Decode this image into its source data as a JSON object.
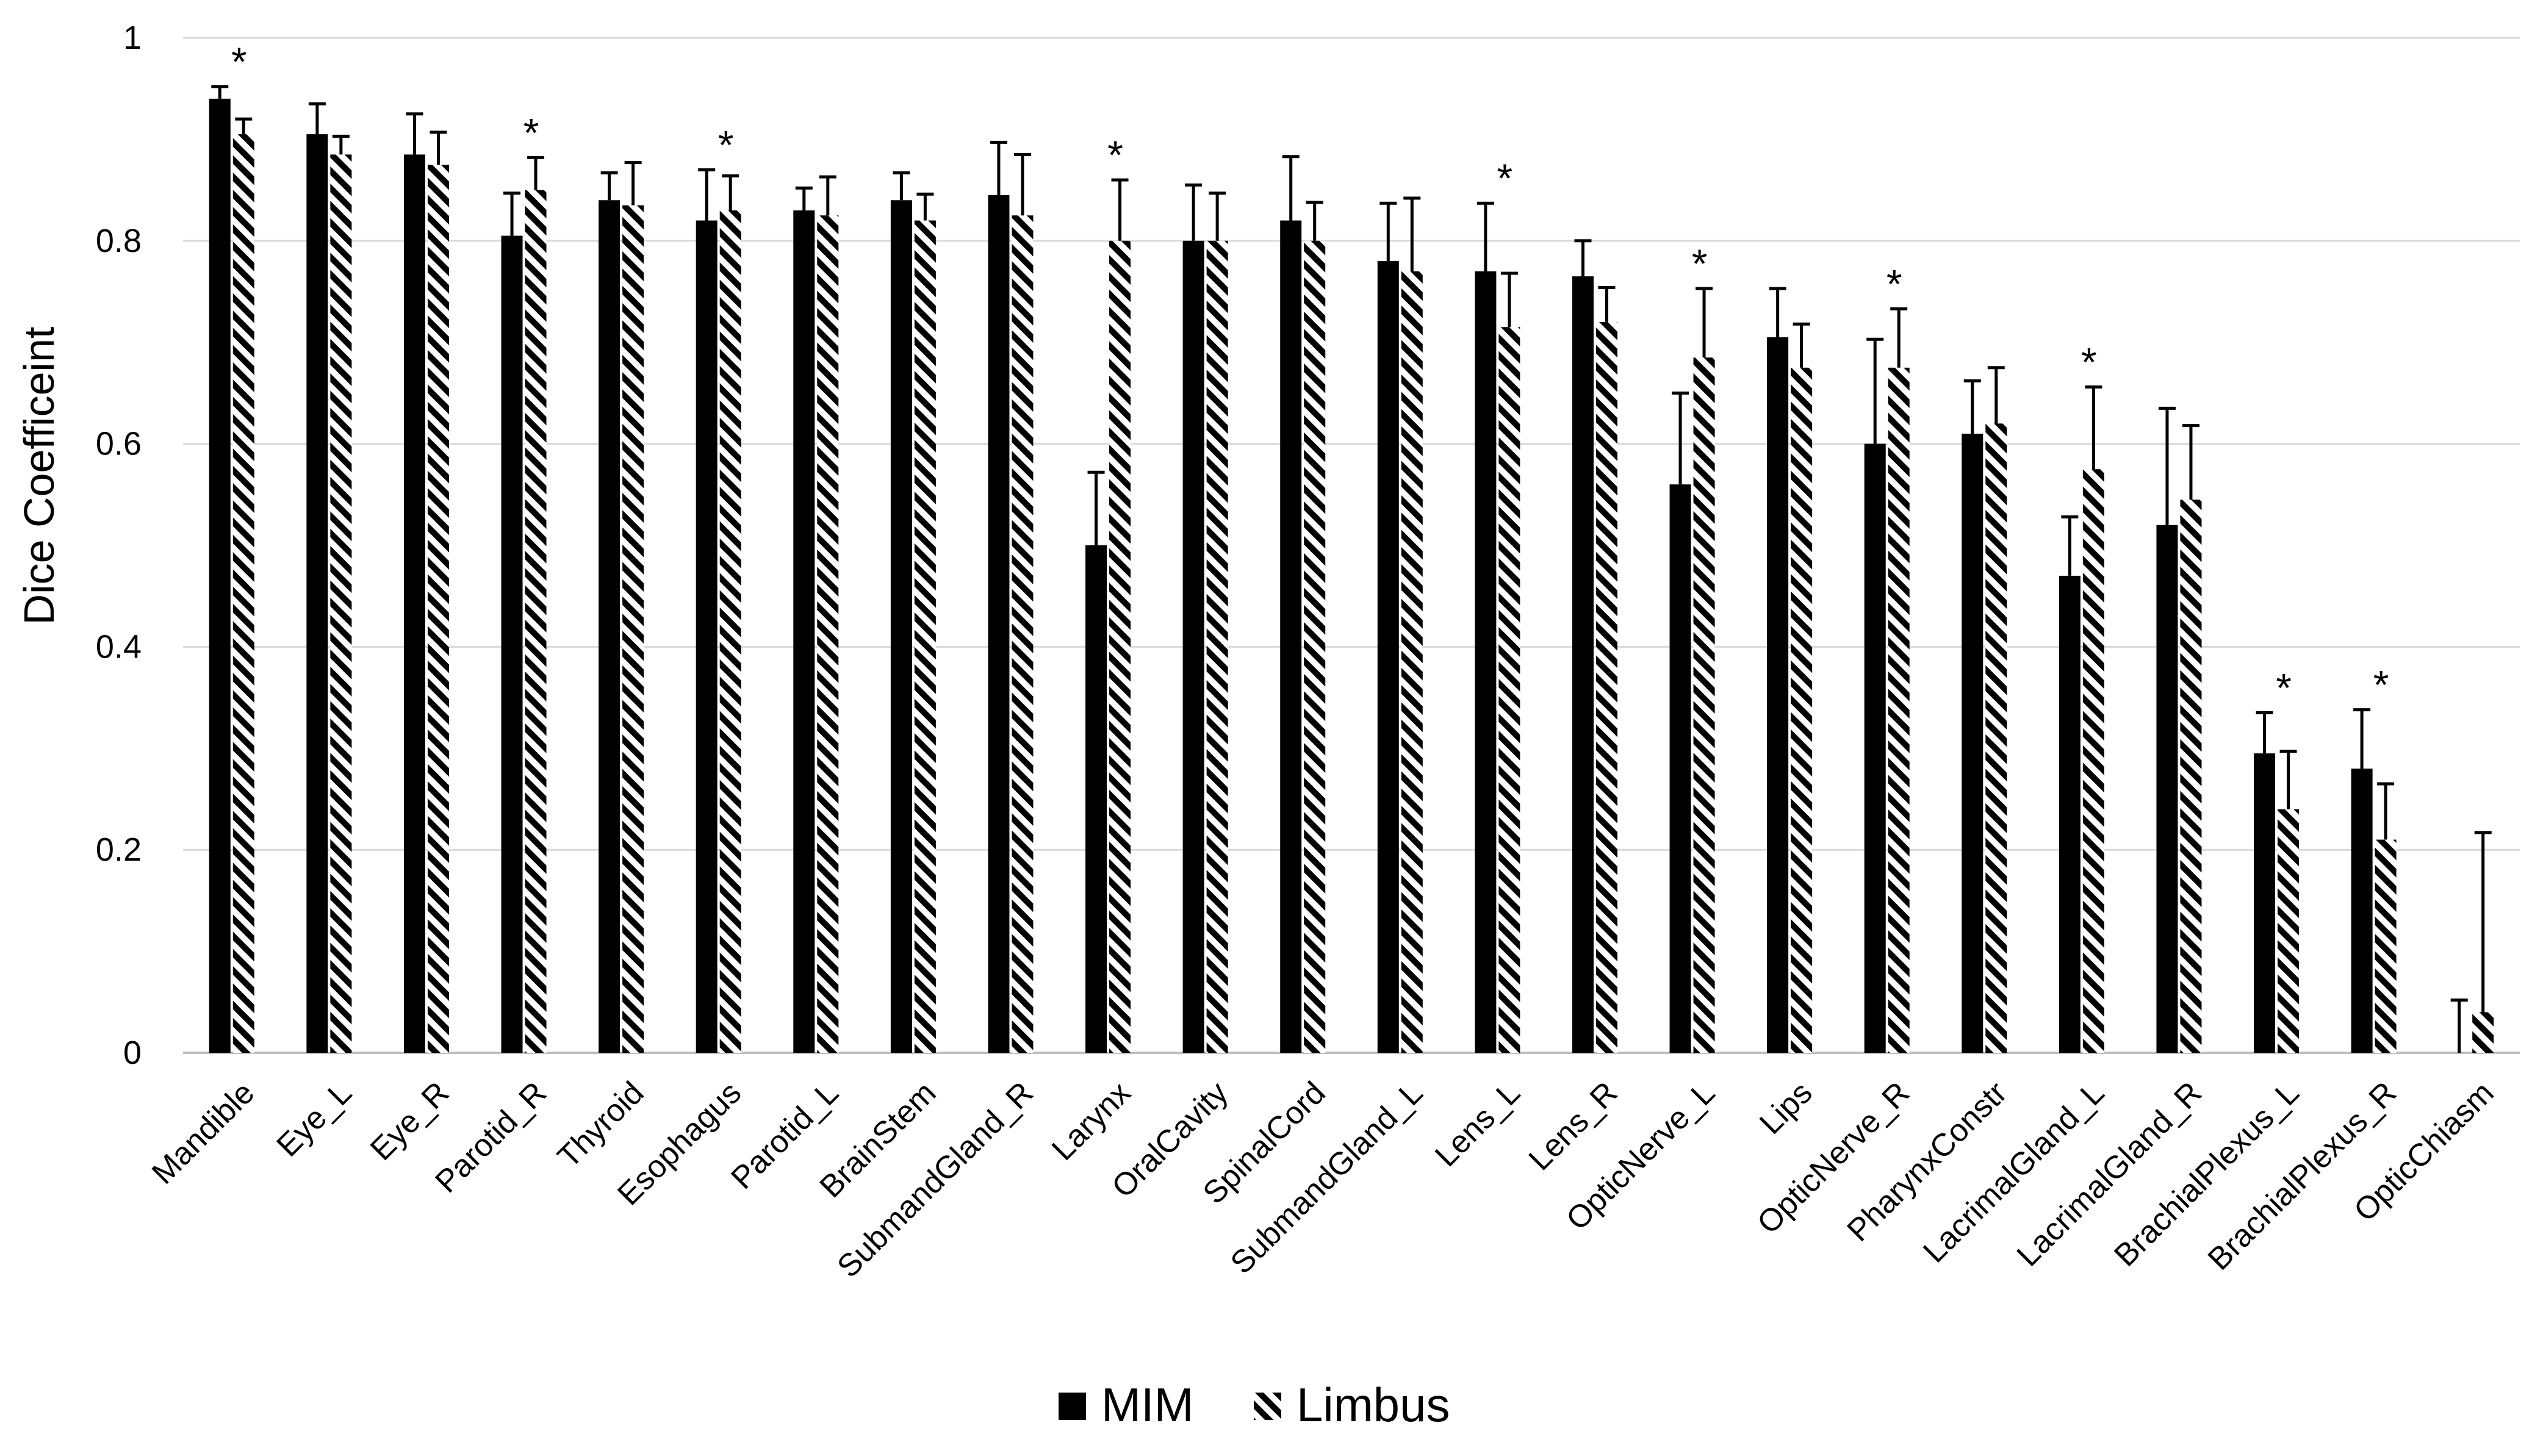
{
  "chart_data": {
    "type": "bar",
    "title": "",
    "xlabel": "",
    "ylabel": "Dice Coefficeint",
    "ylim": [
      0,
      1
    ],
    "yticks": [
      "0",
      "0.2",
      "0.4",
      "0.6",
      "0.8",
      "1"
    ],
    "grid": true,
    "legend_position": "bottom-center",
    "categories": [
      "Mandible",
      "Eye_L",
      "Eye_R",
      "Parotid_R",
      "Thyroid",
      "Esophagus",
      "Parotid_L",
      "BrainStem",
      "SubmandGland_R",
      "Larynx",
      "OralCavity",
      "SpinalCord",
      "SubmandGland_L",
      "Lens_L",
      "Lens_R",
      "OpticNerve_L",
      "Lips",
      "OpticNerve_R",
      "PharynxConstr",
      "LacrimalGland_L",
      "LacrimalGland_R",
      "BrachialPlexus_L",
      "BrachialPlexus_R",
      "OpticChiasm"
    ],
    "series": [
      {
        "name": "MIM",
        "pattern": "solid",
        "color": "#000000",
        "values": [
          0.94,
          0.905,
          0.885,
          0.805,
          0.84,
          0.82,
          0.83,
          0.84,
          0.845,
          0.5,
          0.8,
          0.82,
          0.78,
          0.77,
          0.765,
          0.56,
          0.705,
          0.6,
          0.61,
          0.47,
          0.52,
          0.295,
          0.28,
          0.0
        ],
        "error": [
          0.012,
          0.03,
          0.04,
          0.042,
          0.027,
          0.05,
          0.022,
          0.027,
          0.052,
          0.072,
          0.055,
          0.063,
          0.057,
          0.067,
          0.035,
          0.09,
          0.048,
          0.103,
          0.052,
          0.058,
          0.115,
          0.04,
          0.058,
          0.052
        ]
      },
      {
        "name": "Limbus",
        "pattern": "diagonal-hatch",
        "color": "#000000",
        "values": [
          0.905,
          0.885,
          0.875,
          0.85,
          0.835,
          0.83,
          0.825,
          0.82,
          0.825,
          0.8,
          0.8,
          0.8,
          0.77,
          0.715,
          0.72,
          0.685,
          0.675,
          0.675,
          0.62,
          0.575,
          0.545,
          0.24,
          0.21,
          0.04
        ]
      }
    ],
    "limbus_error": [
      0.015,
      0.018,
      0.032,
      0.032,
      0.042,
      0.034,
      0.038,
      0.026,
      0.06,
      0.06,
      0.047,
      0.038,
      0.072,
      0.053,
      0.034,
      0.068,
      0.043,
      0.058,
      0.055,
      0.081,
      0.073,
      0.057,
      0.055,
      0.177
    ],
    "significance_marker": "*",
    "significant_categories": [
      "Mandible",
      "Parotid_R",
      "Esophagus",
      "Larynx",
      "Lens_L",
      "OpticNerve_L",
      "OpticNerve_R",
      "LacrimalGland_L",
      "BrachialPlexus_L",
      "BrachialPlexus_R"
    ]
  }
}
